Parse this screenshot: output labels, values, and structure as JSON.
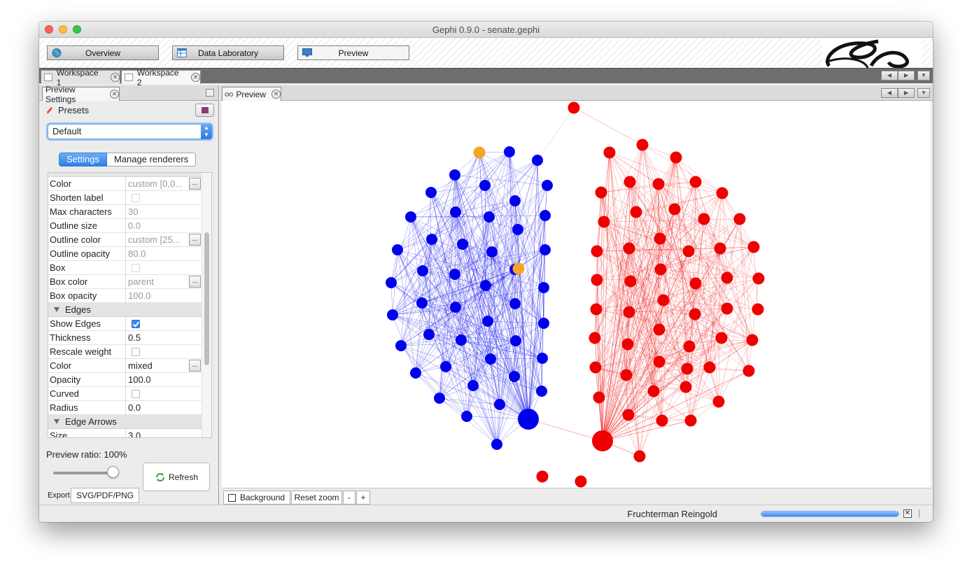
{
  "window": {
    "title": "Gephi 0.9.0 - senate.gephi"
  },
  "perspectives": [
    {
      "label": "Overview",
      "icon": "globe-icon"
    },
    {
      "label": "Data Laboratory",
      "icon": "table-icon"
    },
    {
      "label": "Preview",
      "icon": "monitor-icon",
      "selected": true
    }
  ],
  "workspaces": [
    {
      "label": "Workspace 1",
      "active": false
    },
    {
      "label": "Workspace 2",
      "active": true
    }
  ],
  "preview_settings": {
    "tab_label": "Preview Settings",
    "presets_label": "Presets",
    "preset_value": "Default",
    "settings_tab": "Settings",
    "manage_tab": "Manage renderers",
    "rows": [
      {
        "name": "Color",
        "value": "custom [0,0...",
        "dim": true,
        "kind": "button"
      },
      {
        "name": "Shorten label",
        "kind": "check",
        "checked": false,
        "dim": true
      },
      {
        "name": "Max characters",
        "value": "30",
        "dim": true,
        "kind": "text"
      },
      {
        "name": "Outline size",
        "value": "0.0",
        "dim": true,
        "kind": "text"
      },
      {
        "name": "Outline color",
        "value": "custom [25...",
        "dim": true,
        "kind": "button"
      },
      {
        "name": "Outline opacity",
        "value": "80.0",
        "dim": true,
        "kind": "text"
      },
      {
        "name": "Box",
        "kind": "check",
        "checked": false,
        "dim": true
      },
      {
        "name": "Box color",
        "value": "parent",
        "dim": true,
        "kind": "button"
      },
      {
        "name": "Box opacity",
        "value": "100.0",
        "dim": true,
        "kind": "text"
      },
      {
        "name": "Edges",
        "kind": "category"
      },
      {
        "name": "Show Edges",
        "kind": "check",
        "checked": true
      },
      {
        "name": "Thickness",
        "value": "0.5",
        "kind": "text"
      },
      {
        "name": "Rescale weight",
        "kind": "check",
        "checked": false
      },
      {
        "name": "Color",
        "value": "mixed",
        "kind": "button"
      },
      {
        "name": "Opacity",
        "value": "100.0",
        "kind": "text"
      },
      {
        "name": "Curved",
        "kind": "check",
        "checked": false
      },
      {
        "name": "Radius",
        "value": "0.0",
        "kind": "text"
      },
      {
        "name": "Edge Arrows",
        "kind": "category"
      },
      {
        "name": "Size",
        "value": "3.0",
        "kind": "text"
      }
    ],
    "ellipsis_label": "...",
    "preview_ratio_label": "Preview ratio: 100%",
    "preview_ratio": 1.0,
    "refresh_label": "Refresh",
    "export_label": "Export:",
    "export_button": "SVG/PDF/PNG"
  },
  "preview": {
    "tab_label": "Preview",
    "background_label": "Background",
    "reset_zoom_label": "Reset zoom",
    "zoom_out_label": "-",
    "zoom_in_label": "+",
    "colors": {
      "democrat": "#0000ee",
      "republican": "#ee0000",
      "independent": "#f5a623"
    }
  },
  "status": {
    "task_label": "Fruchterman Reingold",
    "progress": 1.0,
    "cancel_label": "✕"
  },
  "icons": {
    "close": "✕",
    "nav_left": "◀",
    "nav_right": "▶",
    "nav_menu": "▼",
    "select_arrows_up": "▲",
    "select_arrows_down": "▼"
  }
}
